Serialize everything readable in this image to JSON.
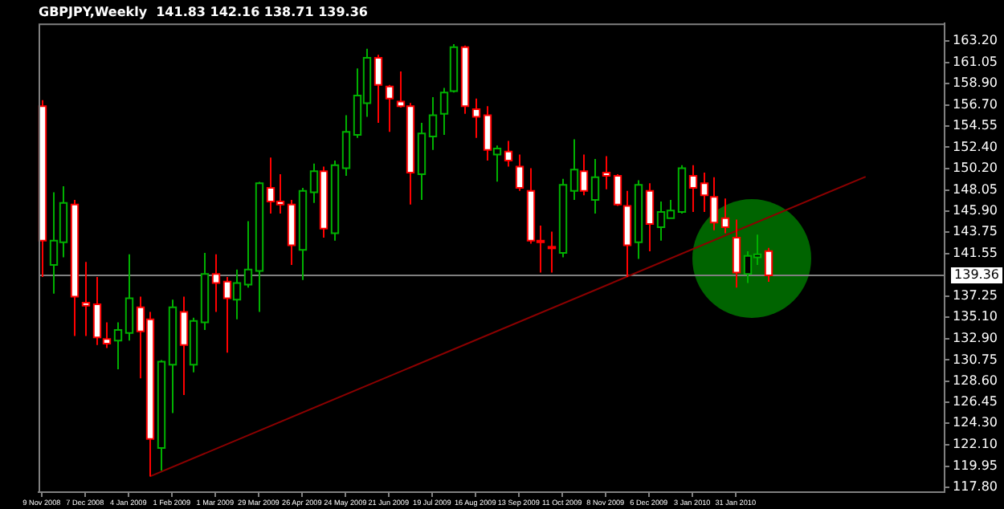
{
  "chart_data": {
    "type": "candlestick",
    "title": "GBPJPY,Weekly  141.83 142.16 138.71 139.36",
    "xlim": [
      "2008-11-07",
      "2010-06-15"
    ],
    "xticks": [
      {
        "value": "2008-11-09",
        "label": "9 Nov 2008"
      },
      {
        "value": "2008-12-07",
        "label": "7 Dec 2008"
      },
      {
        "value": "2009-01-04",
        "label": "4 Jan 2009"
      },
      {
        "value": "2009-02-01",
        "label": "1 Feb 2009"
      },
      {
        "value": "2009-03-01",
        "label": "1 Mar 2009"
      },
      {
        "value": "2009-03-29",
        "label": "29 Mar 2009"
      },
      {
        "value": "2009-04-26",
        "label": "26 Apr 2009"
      },
      {
        "value": "2009-05-24",
        "label": "24 May 2009"
      },
      {
        "value": "2009-06-21",
        "label": "21 Jun 2009"
      },
      {
        "value": "2009-07-19",
        "label": "19 Jul 2009"
      },
      {
        "value": "2009-08-16",
        "label": "16 Aug 2009"
      },
      {
        "value": "2009-09-13",
        "label": "13 Sep 2009"
      },
      {
        "value": "2009-10-11",
        "label": "11 Oct 2009"
      },
      {
        "value": "2009-11-08",
        "label": "8 Nov 2009"
      },
      {
        "value": "2009-12-06",
        "label": "6 Dec 2009"
      },
      {
        "value": "2010-01-03",
        "label": "3 Jan 2010"
      },
      {
        "value": "2010-01-31",
        "label": "31 Jan 2010"
      }
    ],
    "ylim": [
      117.3,
      165.0
    ],
    "yticks": [
      {
        "value": 117.8,
        "label": "117.80"
      },
      {
        "value": 119.95,
        "label": "119.95"
      },
      {
        "value": 122.1,
        "label": "122.10"
      },
      {
        "value": 124.3,
        "label": "124.30"
      },
      {
        "value": 126.45,
        "label": "126.45"
      },
      {
        "value": 128.6,
        "label": "128.60"
      },
      {
        "value": 130.75,
        "label": "130.75"
      },
      {
        "value": 132.9,
        "label": "132.90"
      },
      {
        "value": 135.1,
        "label": "135.10"
      },
      {
        "value": 137.25,
        "label": "137.25"
      },
      {
        "value": 141.55,
        "label": "141.55"
      },
      {
        "value": 143.75,
        "label": "143.75"
      },
      {
        "value": 145.9,
        "label": "145.90"
      },
      {
        "value": 148.05,
        "label": "148.05"
      },
      {
        "value": 150.2,
        "label": "150.20"
      },
      {
        "value": 152.4,
        "label": "152.40"
      },
      {
        "value": 154.55,
        "label": "154.55"
      },
      {
        "value": 156.7,
        "label": "156.70"
      },
      {
        "value": 158.9,
        "label": "158.90"
      },
      {
        "value": 161.05,
        "label": "161.05"
      },
      {
        "value": 163.2,
        "label": "163.20"
      }
    ],
    "ref_lines": [
      {
        "axis": "y",
        "value": 139.36,
        "label": "139.36",
        "color": "#808080"
      }
    ],
    "grid": false,
    "legend": false,
    "series": [
      {
        "type": "line",
        "color": "#8b0000",
        "x": [
          "2009-01-18",
          "2010-04-25"
        ],
        "values": [
          118.9,
          149.4
        ]
      },
      {
        "x": [
          "2008-11-09",
          "2008-11-16",
          "2008-11-23",
          "2008-11-30",
          "2008-12-07",
          "2008-12-14",
          "2008-12-21",
          "2008-12-28",
          "2009-01-04",
          "2009-01-11",
          "2009-01-18",
          "2009-01-25",
          "2009-02-01",
          "2009-02-08",
          "2009-02-15",
          "2009-02-22",
          "2009-03-01",
          "2009-03-08",
          "2009-03-15",
          "2009-03-22",
          "2009-03-29",
          "2009-04-05",
          "2009-04-12",
          "2009-04-19",
          "2009-04-26",
          "2009-05-03",
          "2009-05-10",
          "2009-05-17",
          "2009-05-24",
          "2009-05-31",
          "2009-06-07",
          "2009-06-14",
          "2009-06-21",
          "2009-06-28",
          "2009-07-05",
          "2009-07-12",
          "2009-07-19",
          "2009-07-26",
          "2009-08-02",
          "2009-08-09",
          "2009-08-16",
          "2009-08-23",
          "2009-08-30",
          "2009-09-06",
          "2009-09-13",
          "2009-09-20",
          "2009-09-27",
          "2009-10-04",
          "2009-10-11",
          "2009-10-18",
          "2009-10-25",
          "2009-11-01",
          "2009-11-08",
          "2009-11-15",
          "2009-11-22",
          "2009-11-29",
          "2009-12-06",
          "2009-12-13",
          "2009-12-20",
          "2009-12-27",
          "2010-01-03",
          "2010-01-10",
          "2010-01-17",
          "2010-01-24",
          "2010-01-31",
          "2010-02-07",
          "2010-02-14",
          "2010-02-21"
        ],
        "ohlc": [
          [
            156.58,
            157.2,
            139.19,
            142.89
          ],
          [
            140.42,
            147.81,
            137.5,
            142.89
          ],
          [
            142.73,
            148.43,
            141.19,
            146.73
          ],
          [
            146.58,
            147.04,
            133.19,
            137.19
          ],
          [
            136.58,
            140.73,
            133.19,
            136.27
          ],
          [
            136.42,
            139.19,
            132.27,
            133.04
          ],
          [
            132.88,
            134.57,
            131.96,
            132.42
          ],
          [
            132.73,
            134.57,
            129.8,
            133.8
          ],
          [
            133.5,
            141.5,
            132.73,
            137.04
          ],
          [
            136.11,
            137.19,
            128.88,
            133.65
          ],
          [
            134.88,
            135.65,
            118.88,
            122.72
          ],
          [
            121.8,
            130.73,
            119.49,
            130.57
          ],
          [
            130.27,
            136.88,
            125.34,
            136.11
          ],
          [
            135.65,
            137.19,
            127.19,
            132.27
          ],
          [
            130.27,
            135.04,
            129.5,
            134.73
          ],
          [
            134.57,
            141.65,
            133.8,
            139.5
          ],
          [
            139.5,
            141.5,
            135.65,
            138.58
          ],
          [
            138.73,
            139.19,
            131.5,
            137.04
          ],
          [
            136.88,
            139.96,
            134.88,
            138.58
          ],
          [
            138.42,
            144.88,
            138.11,
            139.96
          ],
          [
            139.81,
            148.88,
            135.65,
            148.73
          ],
          [
            148.27,
            151.35,
            145.65,
            146.88
          ],
          [
            146.88,
            149.66,
            145.65,
            146.58
          ],
          [
            146.58,
            147.04,
            140.42,
            142.42
          ],
          [
            141.96,
            148.27,
            138.88,
            147.96
          ],
          [
            147.81,
            150.73,
            146.73,
            149.96
          ],
          [
            149.96,
            150.43,
            143.19,
            144.12
          ],
          [
            143.65,
            151.04,
            142.89,
            150.58
          ],
          [
            150.27,
            155.66,
            149.5,
            153.97
          ],
          [
            153.66,
            160.43,
            153.35,
            157.66
          ],
          [
            156.89,
            162.43,
            155.5,
            161.51
          ],
          [
            161.51,
            161.81,
            154.89,
            158.74
          ],
          [
            158.58,
            158.74,
            153.97,
            157.35
          ],
          [
            157.04,
            160.12,
            156.43,
            156.58
          ],
          [
            156.58,
            156.9,
            146.58,
            149.81
          ],
          [
            149.66,
            154.89,
            147.04,
            153.81
          ],
          [
            153.5,
            157.5,
            152.12,
            155.66
          ],
          [
            155.81,
            158.43,
            153.66,
            157.97
          ],
          [
            158.12,
            162.89,
            157.97,
            162.58
          ],
          [
            162.58,
            162.74,
            155.81,
            156.58
          ],
          [
            156.27,
            157.35,
            153.35,
            155.5
          ],
          [
            155.66,
            156.58,
            151.04,
            152.12
          ],
          [
            151.66,
            152.58,
            148.89,
            152.27
          ],
          [
            151.97,
            153.04,
            150.43,
            151.04
          ],
          [
            150.43,
            151.66,
            147.96,
            148.27
          ],
          [
            147.96,
            150.27,
            142.58,
            142.89
          ],
          [
            142.89,
            144.42,
            139.65,
            142.73
          ],
          [
            142.27,
            143.81,
            139.65,
            142.12
          ],
          [
            141.65,
            149.19,
            141.19,
            148.58
          ],
          [
            147.96,
            153.2,
            147.04,
            150.12
          ],
          [
            149.96,
            151.66,
            147.5,
            147.96
          ],
          [
            147.04,
            151.2,
            145.65,
            149.35
          ],
          [
            149.81,
            151.5,
            148.12,
            149.5
          ],
          [
            149.5,
            149.66,
            146.43,
            146.58
          ],
          [
            146.43,
            147.96,
            139.19,
            142.42
          ],
          [
            142.73,
            149.04,
            141.04,
            148.58
          ],
          [
            147.96,
            148.73,
            141.81,
            144.58
          ],
          [
            144.27,
            146.88,
            142.89,
            145.81
          ],
          [
            145.19,
            147.04,
            145.19,
            145.96
          ],
          [
            145.81,
            150.58,
            145.65,
            150.27
          ],
          [
            149.5,
            150.58,
            145.81,
            148.27
          ],
          [
            148.73,
            149.81,
            145.81,
            147.5
          ],
          [
            147.35,
            149.35,
            143.96,
            144.73
          ],
          [
            145.19,
            147.19,
            143.65,
            144.27
          ],
          [
            143.19,
            145.04,
            138.11,
            139.65
          ],
          [
            139.5,
            141.81,
            138.58,
            141.35
          ],
          [
            141.19,
            143.5,
            140.42,
            141.5
          ],
          [
            141.83,
            142.16,
            138.71,
            139.36
          ]
        ],
        "colors": [
          "#ffffff",
          "#000000",
          "#000000",
          "#ffffff",
          "#ffffff",
          "#ffffff",
          "#ffffff",
          "#000000",
          "#000000",
          "#ffffff",
          "#ffffff",
          "#000000",
          "#000000",
          "#ffffff",
          "#000000",
          "#000000",
          "#ffffff",
          "#ffffff",
          "#000000",
          "#000000",
          "#000000",
          "#ffffff",
          "#ffffff",
          "#ffffff",
          "#000000",
          "#000000",
          "#ffffff",
          "#000000",
          "#000000",
          "#000000",
          "#000000",
          "#ffffff",
          "#ffffff",
          "#ffffff",
          "#ffffff",
          "#000000",
          "#000000",
          "#000000",
          "#000000",
          "#ffffff",
          "#ffffff",
          "#ffffff",
          "#000000",
          "#ffffff",
          "#ffffff",
          "#ffffff",
          "#ffffff",
          "#ffffff",
          "#000000",
          "#000000",
          "#ffffff",
          "#000000",
          "#ffffff",
          "#ffffff",
          "#ffffff",
          "#000000",
          "#ffffff",
          "#000000",
          "#000000",
          "#000000",
          "#ffffff",
          "#ffffff",
          "#ffffff",
          "#ffffff",
          "#ffffff",
          "#000000",
          "#000000",
          "#ffffff"
        ]
      }
    ]
  }
}
